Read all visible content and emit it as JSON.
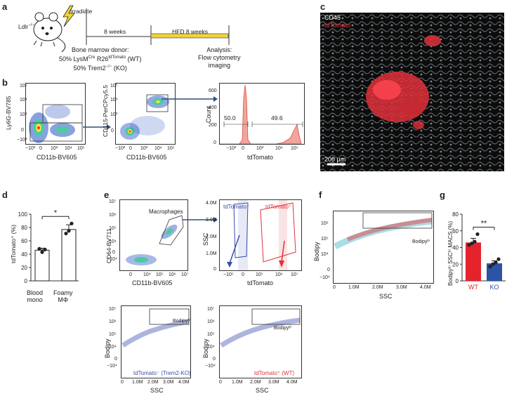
{
  "panels": {
    "a": "a",
    "b": "b",
    "c": "c",
    "d": "d",
    "e": "e",
    "f": "f",
    "g": "g"
  },
  "panel_a": {
    "mouse_label": "Ldlr",
    "mouse_label_sup": "−/−",
    "irradiate": "Irradiate",
    "span1": "8 weeks",
    "span2": "HFD 8 weeks",
    "donor_line1": "Bone marrow donor:",
    "donor_line2a": "50% LysM",
    "donor_line2_sup1": "Cre",
    "donor_line2b": " R26",
    "donor_line2_sup2": "tdTomato",
    "donor_line2c": " (WT)",
    "donor_line3a": "50% Trem2",
    "donor_line3_sup": "−/−",
    "donor_line3b": " (KO)",
    "analysis_line1": "Analysis:",
    "analysis_line2": "Flow cytometry",
    "analysis_line3": "imaging",
    "hfd_bar_color": "#f1d33a"
  },
  "panel_b": {
    "plot1": {
      "xlabel": "CD11b-BV605",
      "ylabel": "Ly6G-BV785",
      "xticks": [
        "−10³",
        "0",
        "10³",
        "10⁴",
        "10⁵"
      ],
      "yticks": [
        "10⁵",
        "10⁴",
        "10³",
        "0",
        "−10³"
      ]
    },
    "plot2": {
      "xlabel": "CD11b-BV605",
      "ylabel": "CD115-PerCPcy5.5",
      "xticks": [
        "−10³",
        "0",
        "10³",
        "10⁴",
        "10⁵"
      ],
      "yticks": [
        "10⁵",
        "10⁴",
        "10³",
        "0"
      ]
    },
    "plot3": {
      "xlabel": "tdTomato",
      "ylabel": "Count",
      "xticks": [
        "−10³",
        "0",
        "10³",
        "10⁴",
        "10⁵"
      ],
      "yticks": [
        "600",
        "400",
        "200",
        "0"
      ],
      "gate_left": "50.0",
      "gate_right": "49.6"
    }
  },
  "panel_c": {
    "label1": "CD45",
    "label2": "tdTomato",
    "scale_bar": "200 μm",
    "label2_color": "#e8323c"
  },
  "panel_d": {
    "ylabel": "tdTomato⁺ (%)",
    "yticks": [
      "100",
      "80",
      "60",
      "40",
      "20",
      "0"
    ],
    "cat1_line1": "Blood",
    "cat1_line2": "mono",
    "cat2_line1": "Foamy",
    "cat2_line2": "MΦ",
    "significance": "*"
  },
  "panel_e": {
    "plot1": {
      "xlabel": "CD11b-BV605",
      "ylabel": "CD64-BV711",
      "gate": "Macrophages",
      "xticks": [
        "0",
        "10⁴",
        "10⁵",
        "10⁶",
        "10⁷"
      ],
      "yticks": [
        "10⁷",
        "10⁶",
        "10⁵",
        "10⁴",
        "0",
        "−10⁴"
      ]
    },
    "plot2": {
      "xlabel": "tdTomato",
      "ylabel": "SSC",
      "gate_left": "tdTomato⁻",
      "gate_right": "tdTomato⁺",
      "xticks": [
        "−10⁵",
        "0",
        "10⁵",
        "10⁶",
        "10⁷"
      ],
      "yticks": [
        "4.0M",
        "3.0M",
        "2.0M",
        "1.0M",
        "0"
      ],
      "blue": "#3a4fa8",
      "red": "#e0323b"
    },
    "plot3": {
      "xlabel": "SSC",
      "ylabel": "Bodipy",
      "gate": "Bodipyʰⁱ",
      "caption": "tdTomato⁻ (Trem2-KO)",
      "xticks": [
        "0",
        "1.0M",
        "2.0M",
        "3.0M",
        "4.0M"
      ],
      "yticks": [
        "10⁷",
        "10⁶",
        "10⁵",
        "10⁴",
        "0",
        "−10⁴"
      ]
    },
    "plot4": {
      "xlabel": "SSC",
      "ylabel": "Bodipy",
      "gate": "Bodipyʰⁱ",
      "caption": "tdTomato⁺ (WT)",
      "xticks": [
        "0",
        "1.0M",
        "2.0M",
        "3.0M",
        "4.0M"
      ],
      "yticks": [
        "10⁷",
        "10⁶",
        "10⁵",
        "10⁴",
        "0",
        "−10⁴"
      ]
    }
  },
  "panel_f": {
    "xlabel": "SSC",
    "ylabel": "Bodipy",
    "gate": "Bodipyʰⁱ",
    "xticks": [
      "0",
      "1.0M",
      "2.0M",
      "3.0M",
      "4.0M"
    ],
    "yticks": [
      "10⁶",
      "10⁵",
      "10⁴",
      "0",
      "−10⁴"
    ]
  },
  "panel_g": {
    "ylabel": "Bodipyʰⁱ SSCʰⁱ MACS (%)",
    "yticks": [
      "80",
      "60",
      "40",
      "20",
      "0"
    ],
    "significance": "**"
  },
  "chart_data": [
    {
      "type": "bar",
      "panel": "d",
      "categories": [
        "Blood mono",
        "Foamy MΦ"
      ],
      "values": [
        46,
        77
      ],
      "errors": [
        3,
        7
      ],
      "points": [
        [
          48,
          43,
          47
        ],
        [
          71,
          75,
          86
        ]
      ],
      "ylabel": "tdTomato⁺ (%)",
      "ylim": [
        0,
        100
      ],
      "significance": "*"
    },
    {
      "type": "bar",
      "panel": "g",
      "categories": [
        "WT",
        "KO"
      ],
      "values": [
        46,
        21
      ],
      "errors": [
        5,
        3
      ],
      "points": [
        [
          43,
          45,
          47,
          56
        ],
        [
          17,
          20,
          22,
          26
        ]
      ],
      "colors": [
        "#e4232c",
        "#2b53a6"
      ],
      "ylabel": "Bodipyʰⁱ SSCʰⁱ MACS (%)",
      "ylim": [
        0,
        80
      ],
      "significance": "**"
    }
  ]
}
